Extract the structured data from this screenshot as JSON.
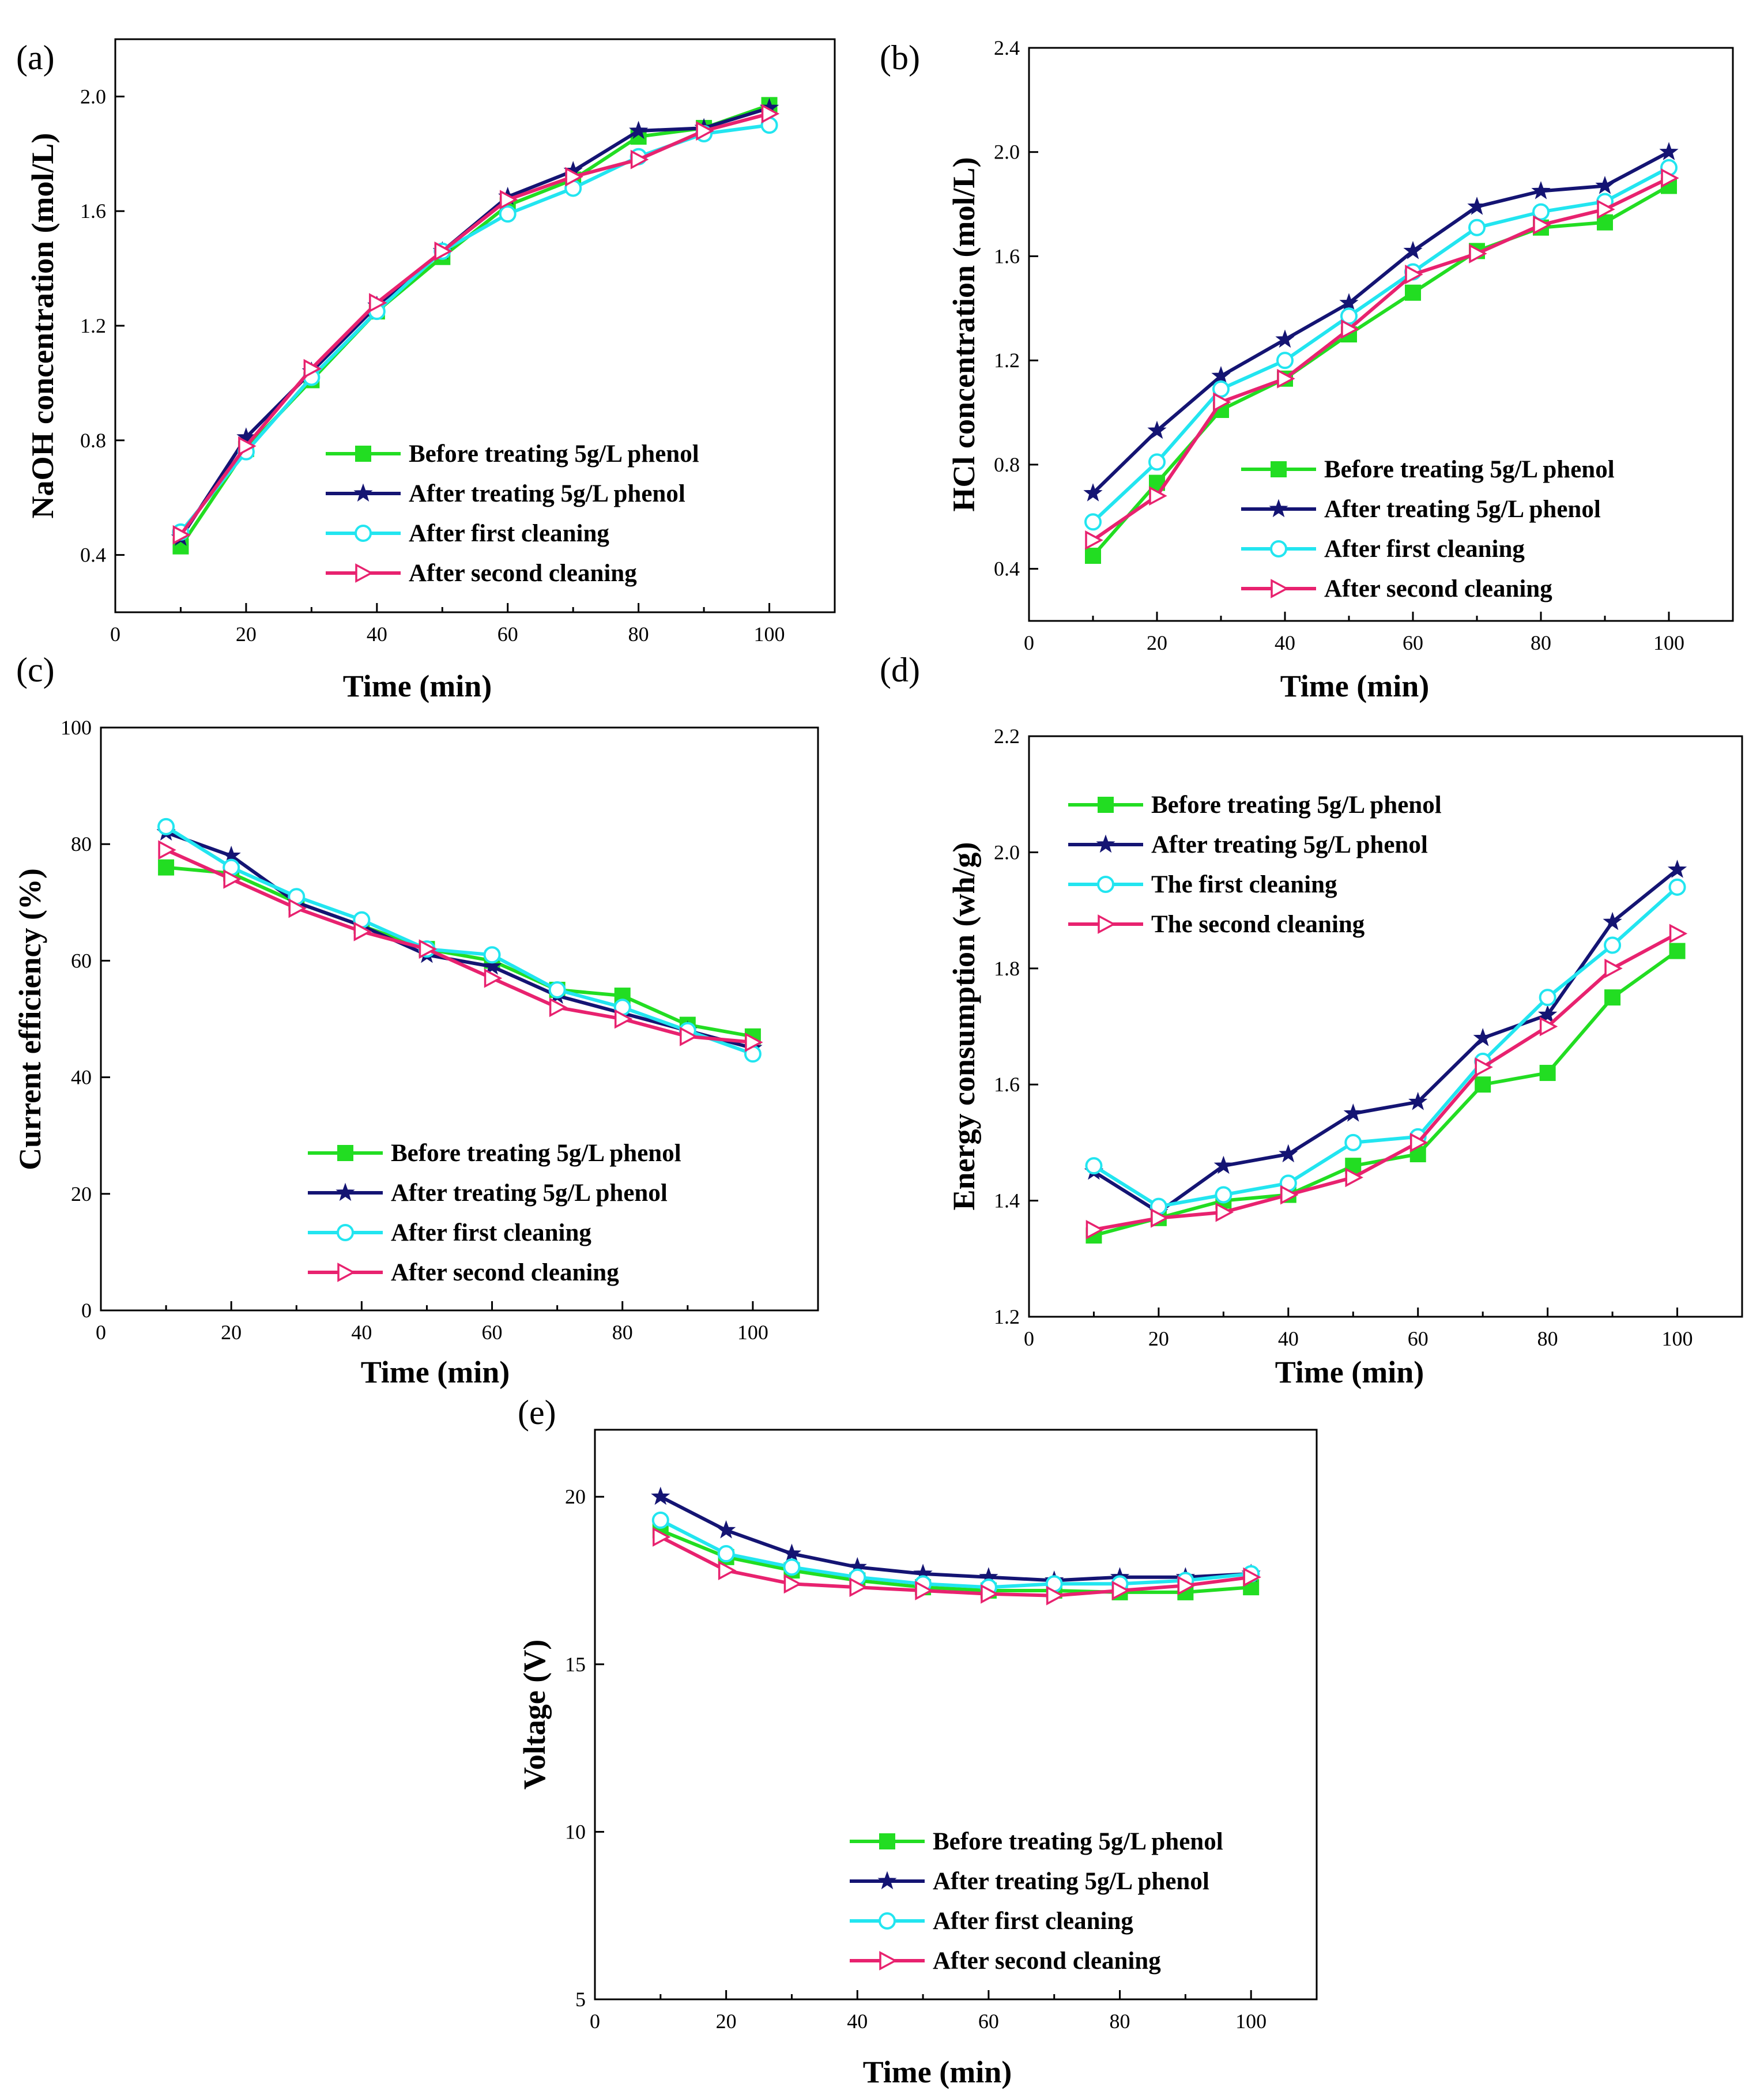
{
  "chart_data": [
    {
      "panel_label": "(a)",
      "type": "line",
      "xlabel": "Time (min)",
      "ylabel": "NaOH concentration (mol/L)",
      "xlim": [
        0,
        110
      ],
      "ylim": [
        0.2,
        2.2
      ],
      "xticks": [
        0,
        20,
        40,
        60,
        80,
        100
      ],
      "xtick_labels": [
        "0",
        "20",
        "40",
        "60",
        "80",
        "100"
      ],
      "yticks": [
        0.4,
        0.8,
        1.2,
        1.6,
        2.0
      ],
      "ytick_labels": [
        "0.4",
        "0.8",
        "1.2",
        "1.6",
        "2.0"
      ],
      "grid": false,
      "legend_position": "bottom-right",
      "x": [
        10,
        20,
        30,
        40,
        50,
        60,
        70,
        80,
        90,
        100
      ],
      "series": [
        {
          "name": "Before treating 5g/L phenol",
          "color": "#22dd22",
          "marker": "square",
          "values": [
            0.43,
            0.77,
            1.01,
            1.25,
            1.44,
            1.62,
            1.71,
            1.86,
            1.89,
            1.97
          ]
        },
        {
          "name": "After treating 5g/L phenol",
          "color": "#141473",
          "marker": "star",
          "values": [
            0.46,
            0.81,
            1.04,
            1.27,
            1.46,
            1.65,
            1.74,
            1.88,
            1.89,
            1.96
          ]
        },
        {
          "name": "After first cleaning",
          "color": "#22e5f0",
          "marker": "circle",
          "values": [
            0.48,
            0.76,
            1.02,
            1.25,
            1.46,
            1.59,
            1.68,
            1.79,
            1.87,
            1.9
          ]
        },
        {
          "name": "After second cleaning",
          "color": "#e8226f",
          "marker": "triangle-right",
          "values": [
            0.47,
            0.78,
            1.05,
            1.28,
            1.46,
            1.64,
            1.72,
            1.78,
            1.88,
            1.94
          ]
        }
      ]
    },
    {
      "panel_label": "(b)",
      "type": "line",
      "xlabel": "Time (min)",
      "ylabel": "HCl concentration (mol/L)",
      "xlim": [
        0,
        110
      ],
      "ylim": [
        0.2,
        2.4
      ],
      "xticks": [
        0,
        20,
        40,
        60,
        80,
        100
      ],
      "xtick_labels": [
        "0",
        "20",
        "40",
        "60",
        "80",
        "100"
      ],
      "yticks": [
        0.4,
        0.8,
        1.2,
        1.6,
        2.0,
        2.4
      ],
      "ytick_labels": [
        "0.4",
        "0.8",
        "1.2",
        "1.6",
        "2.0",
        "2.4"
      ],
      "grid": false,
      "legend_position": "bottom-right",
      "x": [
        10,
        20,
        30,
        40,
        50,
        60,
        70,
        80,
        90,
        100
      ],
      "series": [
        {
          "name": "Before treating 5g/L phenol",
          "color": "#22dd22",
          "marker": "square",
          "values": [
            0.45,
            0.73,
            1.01,
            1.13,
            1.3,
            1.46,
            1.62,
            1.71,
            1.73,
            1.87
          ]
        },
        {
          "name": "After treating 5g/L phenol",
          "color": "#141473",
          "marker": "star",
          "values": [
            0.69,
            0.93,
            1.14,
            1.28,
            1.42,
            1.62,
            1.79,
            1.85,
            1.87,
            2.0
          ]
        },
        {
          "name": "After first cleaning",
          "color": "#22e5f0",
          "marker": "circle",
          "values": [
            0.58,
            0.81,
            1.09,
            1.2,
            1.37,
            1.54,
            1.71,
            1.77,
            1.81,
            1.94
          ]
        },
        {
          "name": "After second cleaning",
          "color": "#e8226f",
          "marker": "triangle-right",
          "values": [
            0.51,
            0.68,
            1.04,
            1.13,
            1.32,
            1.53,
            1.61,
            1.72,
            1.78,
            1.9
          ]
        }
      ]
    },
    {
      "panel_label": "(c)",
      "type": "line",
      "xlabel": "Time (min)",
      "ylabel": "Current efficiency (%)",
      "xlim": [
        0,
        110
      ],
      "ylim": [
        0,
        100
      ],
      "xticks": [
        0,
        20,
        40,
        60,
        80,
        100
      ],
      "xtick_labels": [
        "0",
        "20",
        "40",
        "60",
        "80",
        "100"
      ],
      "yticks": [
        0,
        20,
        40,
        60,
        80,
        100
      ],
      "ytick_labels": [
        "0",
        "20",
        "40",
        "60",
        "80",
        "100"
      ],
      "grid": false,
      "legend_position": "bottom-right",
      "x": [
        10,
        20,
        30,
        40,
        50,
        60,
        70,
        80,
        90,
        100
      ],
      "series": [
        {
          "name": "Before treating 5g/L phenol",
          "color": "#22dd22",
          "marker": "square",
          "values": [
            76,
            75,
            70,
            66,
            62,
            60,
            55,
            54,
            49,
            47
          ]
        },
        {
          "name": "After treating 5g/L phenol",
          "color": "#141473",
          "marker": "star",
          "values": [
            82,
            78,
            70,
            66,
            61,
            59,
            54,
            51,
            48,
            45
          ]
        },
        {
          "name": "After first cleaning",
          "color": "#22e5f0",
          "marker": "circle",
          "values": [
            83,
            76,
            71,
            67,
            62,
            61,
            55,
            52,
            48,
            44
          ]
        },
        {
          "name": "After second cleaning",
          "color": "#e8226f",
          "marker": "triangle-right",
          "values": [
            79,
            74,
            69,
            65,
            62,
            57,
            52,
            50,
            47,
            46
          ]
        }
      ]
    },
    {
      "panel_label": "(d)",
      "type": "line",
      "xlabel": "Time (min)",
      "ylabel": "Energy consumption (wh/g)",
      "xlim": [
        0,
        110
      ],
      "ylim": [
        1.2,
        2.2
      ],
      "xticks": [
        0,
        20,
        40,
        60,
        80,
        100
      ],
      "xtick_labels": [
        "0",
        "20",
        "40",
        "60",
        "80",
        "100"
      ],
      "yticks": [
        1.2,
        1.4,
        1.6,
        1.8,
        2.0,
        2.2
      ],
      "ytick_labels": [
        "1.2",
        "1.4",
        "1.6",
        "1.8",
        "2.0",
        "2.2"
      ],
      "grid": false,
      "legend_position": "top-left",
      "x": [
        10,
        20,
        30,
        40,
        50,
        60,
        70,
        80,
        90,
        100
      ],
      "series": [
        {
          "name": "Before treating 5g/L phenol",
          "color": "#22dd22",
          "marker": "square",
          "values": [
            1.34,
            1.37,
            1.4,
            1.41,
            1.46,
            1.48,
            1.6,
            1.62,
            1.75,
            1.83
          ]
        },
        {
          "name": "After treating 5g/L phenol",
          "color": "#141473",
          "marker": "star",
          "values": [
            1.45,
            1.38,
            1.46,
            1.48,
            1.55,
            1.57,
            1.68,
            1.72,
            1.88,
            1.97
          ]
        },
        {
          "name": "The first cleaning",
          "color": "#22e5f0",
          "marker": "circle",
          "values": [
            1.46,
            1.39,
            1.41,
            1.43,
            1.5,
            1.51,
            1.64,
            1.75,
            1.84,
            1.94
          ]
        },
        {
          "name": "The second cleaning",
          "color": "#e8226f",
          "marker": "triangle-right",
          "values": [
            1.35,
            1.37,
            1.38,
            1.41,
            1.44,
            1.5,
            1.63,
            1.7,
            1.8,
            1.86
          ]
        }
      ]
    },
    {
      "panel_label": "(e)",
      "type": "line",
      "xlabel": "Time (min)",
      "ylabel": "Voltage (V)",
      "xlim": [
        0,
        110
      ],
      "ylim": [
        5,
        22
      ],
      "xticks": [
        0,
        20,
        40,
        60,
        80,
        100
      ],
      "xtick_labels": [
        "0",
        "20",
        "40",
        "60",
        "80",
        "100"
      ],
      "yticks": [
        5,
        10,
        15,
        20
      ],
      "ytick_labels": [
        "5",
        "10",
        "15",
        "20"
      ],
      "grid": false,
      "legend_position": "bottom-right",
      "x": [
        10,
        20,
        30,
        40,
        50,
        60,
        70,
        80,
        90,
        100
      ],
      "series": [
        {
          "name": "Before treating 5g/L phenol",
          "color": "#22dd22",
          "marker": "square",
          "values": [
            19.0,
            18.2,
            17.8,
            17.5,
            17.3,
            17.2,
            17.2,
            17.15,
            17.15,
            17.3
          ]
        },
        {
          "name": "After treating 5g/L phenol",
          "color": "#141473",
          "marker": "star",
          "values": [
            20.0,
            19.0,
            18.3,
            17.9,
            17.7,
            17.6,
            17.5,
            17.6,
            17.6,
            17.7
          ]
        },
        {
          "name": "After first cleaning",
          "color": "#22e5f0",
          "marker": "circle",
          "values": [
            19.3,
            18.3,
            17.9,
            17.6,
            17.4,
            17.3,
            17.4,
            17.4,
            17.5,
            17.7
          ]
        },
        {
          "name": "After second cleaning",
          "color": "#e8226f",
          "marker": "triangle-right",
          "values": [
            18.8,
            17.8,
            17.4,
            17.3,
            17.2,
            17.1,
            17.05,
            17.2,
            17.35,
            17.6
          ]
        }
      ]
    }
  ]
}
